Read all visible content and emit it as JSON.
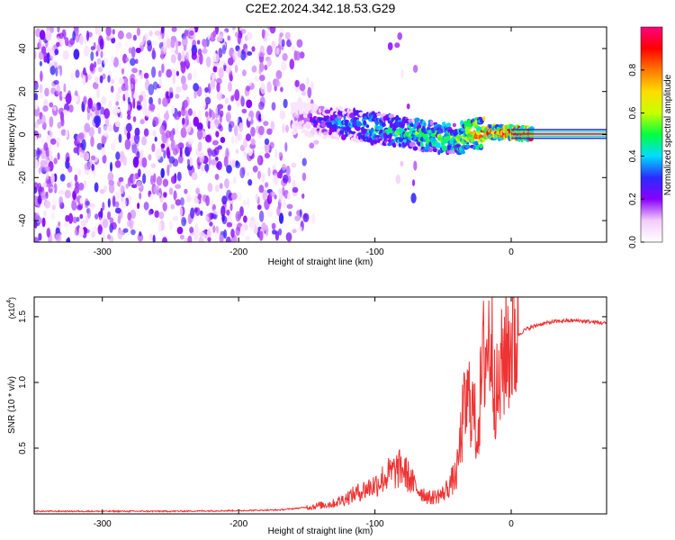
{
  "title": "C2E2.2024.342.18.53.G29",
  "chart_data": [
    {
      "type": "heatmap",
      "xlabel": "Height of straight line (km)",
      "ylabel": "Frequency (Hz)",
      "xlim": [
        -350,
        70
      ],
      "ylim": [
        -50,
        50
      ],
      "xticks": [
        -300,
        -200,
        -100,
        0
      ],
      "yticks": [
        -40,
        -20,
        0,
        20,
        40
      ],
      "colorbar": {
        "label": "Normalized spectral amplitude",
        "range": [
          0,
          1
        ],
        "ticks": [
          "0.0",
          "0.2",
          "0.4",
          "0.6",
          "0.8"
        ],
        "colors": [
          "#ffffff",
          "#f3cdfb",
          "#8800ff",
          "#2a2aff",
          "#00dcff",
          "#00ff40",
          "#c8ff00",
          "#ffdc00",
          "#ff7800",
          "#ff0000",
          "#ff0080"
        ]
      },
      "signal_trace": {
        "height_km": [
          -160,
          -140,
          -120,
          -100,
          -80,
          -60,
          -40,
          -20,
          0,
          10,
          20,
          70
        ],
        "center_frequency_hz": [
          8,
          6,
          5,
          3,
          1,
          -1,
          -2,
          1,
          1,
          0.5,
          0,
          0
        ],
        "normalized_amplitude": [
          0.15,
          0.3,
          0.4,
          0.45,
          0.5,
          0.55,
          0.55,
          0.8,
          0.9,
          0.95,
          0.95,
          0.95
        ]
      }
    },
    {
      "type": "line",
      "xlabel": "Height of straight line (km)",
      "ylabel": "SNR (10 * v/v)",
      "y_multiplier": "(x10^4)",
      "y_multiplier_base": "(x10",
      "y_multiplier_exp": "4",
      "y_multiplier_close": ")",
      "xlim": [
        -350,
        70
      ],
      "ylim": [
        0,
        1.65
      ],
      "xticks": [
        -300,
        -200,
        -100,
        0
      ],
      "yticks": [
        0.5,
        1.0,
        1.5
      ],
      "ytick_labels": [
        "0.5",
        "1.0",
        "1.5"
      ],
      "line_color": "#ee3333",
      "x": [
        -350,
        -300,
        -250,
        -200,
        -170,
        -150,
        -130,
        -115,
        -100,
        -90,
        -80,
        -70,
        -60,
        -50,
        -40,
        -35,
        -30,
        -25,
        -20,
        -15,
        -10,
        -5,
        0,
        10,
        20,
        30,
        40,
        50,
        60,
        70
      ],
      "y": [
        0.02,
        0.02,
        0.02,
        0.025,
        0.03,
        0.05,
        0.08,
        0.15,
        0.22,
        0.3,
        0.35,
        0.2,
        0.12,
        0.15,
        0.3,
        0.75,
        0.9,
        0.6,
        1.2,
        1.35,
        0.85,
        1.25,
        1.32,
        1.4,
        1.44,
        1.46,
        1.47,
        1.47,
        1.46,
        1.45
      ]
    }
  ]
}
